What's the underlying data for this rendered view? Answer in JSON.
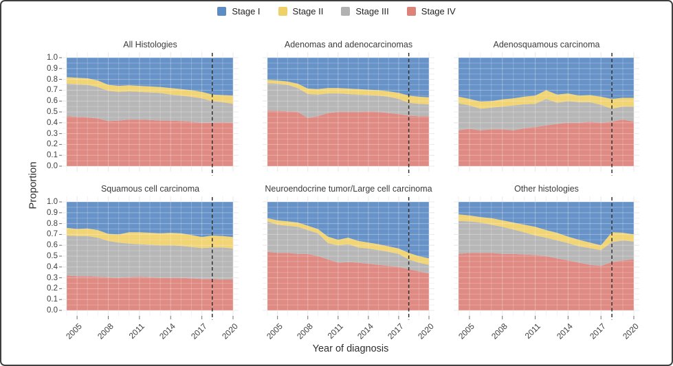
{
  "legend": {
    "items": [
      {
        "label": "Stage I",
        "color": "#5d8bc4"
      },
      {
        "label": "Stage II",
        "color": "#f0d169"
      },
      {
        "label": "Stage III",
        "color": "#b2b2b2"
      },
      {
        "label": "Stage IV",
        "color": "#dd8179"
      }
    ]
  },
  "chart_data": {
    "type": "area",
    "stacked": true,
    "xlabel": "Year of diagnosis",
    "ylabel": "Proportion",
    "x": [
      2004,
      2005,
      2006,
      2007,
      2008,
      2009,
      2010,
      2011,
      2012,
      2013,
      2014,
      2015,
      2016,
      2017,
      2018,
      2019,
      2020
    ],
    "x_tick_years": [
      2005,
      2008,
      2011,
      2014,
      2017,
      2020
    ],
    "y_tick_labels": [
      "1.0",
      "0.9",
      "0.8",
      "0.7",
      "0.6",
      "0.5",
      "0.4",
      "0.3",
      "0.2",
      "0.1",
      "0.0"
    ],
    "ylim": [
      0,
      1
    ],
    "grid": true,
    "legend_position": "top",
    "legend_entries": [
      "Stage I",
      "Stage II",
      "Stage III",
      "Stage IV"
    ],
    "stack_order_bottom_to_top": [
      "Stage IV",
      "Stage III",
      "Stage II",
      "Stage I"
    ],
    "colors": {
      "stage_i": "#5d8bc4",
      "stage_ii": "#f0d169",
      "stage_iii": "#b2b2b2",
      "stage_iv": "#dd8179"
    },
    "reference_line": {
      "x": 2018,
      "style": "dashed",
      "color": "#2f2f2f"
    },
    "panels": [
      {
        "title": "All Histologies",
        "cumulative_tops": {
          "stage_iv": [
            0.46,
            0.455,
            0.45,
            0.44,
            0.415,
            0.42,
            0.43,
            0.43,
            0.425,
            0.42,
            0.42,
            0.415,
            0.41,
            0.4,
            0.4,
            0.405,
            0.4
          ],
          "stage_iii": [
            0.76,
            0.755,
            0.75,
            0.73,
            0.695,
            0.685,
            0.69,
            0.685,
            0.68,
            0.675,
            0.66,
            0.65,
            0.64,
            0.625,
            0.6,
            0.59,
            0.575
          ],
          "stage_ii": [
            0.82,
            0.815,
            0.81,
            0.79,
            0.75,
            0.74,
            0.745,
            0.74,
            0.735,
            0.73,
            0.72,
            0.71,
            0.7,
            0.685,
            0.66,
            0.655,
            0.65
          ],
          "stage_i": [
            1,
            1,
            1,
            1,
            1,
            1,
            1,
            1,
            1,
            1,
            1,
            1,
            1,
            1,
            1,
            1,
            1
          ]
        }
      },
      {
        "title": "Adenomas and adenocarcinomas",
        "cumulative_tops": {
          "stage_iv": [
            0.51,
            0.51,
            0.505,
            0.5,
            0.445,
            0.46,
            0.49,
            0.5,
            0.5,
            0.5,
            0.505,
            0.5,
            0.49,
            0.48,
            0.465,
            0.46,
            0.46
          ],
          "stage_iii": [
            0.765,
            0.76,
            0.75,
            0.72,
            0.665,
            0.66,
            0.67,
            0.67,
            0.665,
            0.66,
            0.655,
            0.65,
            0.64,
            0.62,
            0.585,
            0.575,
            0.57
          ],
          "stage_ii": [
            0.795,
            0.79,
            0.78,
            0.76,
            0.715,
            0.71,
            0.72,
            0.72,
            0.715,
            0.71,
            0.705,
            0.7,
            0.69,
            0.675,
            0.65,
            0.64,
            0.635
          ],
          "stage_i": [
            1,
            1,
            1,
            1,
            1,
            1,
            1,
            1,
            1,
            1,
            1,
            1,
            1,
            1,
            1,
            1,
            1
          ]
        }
      },
      {
        "title": "Adenosquamous carcinoma",
        "cumulative_tops": {
          "stage_iv": [
            0.33,
            0.345,
            0.33,
            0.34,
            0.34,
            0.33,
            0.35,
            0.36,
            0.375,
            0.39,
            0.4,
            0.4,
            0.41,
            0.4,
            0.41,
            0.43,
            0.41
          ],
          "stage_iii": [
            0.58,
            0.56,
            0.53,
            0.54,
            0.55,
            0.56,
            0.57,
            0.575,
            0.62,
            0.585,
            0.6,
            0.59,
            0.59,
            0.565,
            0.53,
            0.55,
            0.55
          ],
          "stage_ii": [
            0.64,
            0.62,
            0.595,
            0.6,
            0.615,
            0.625,
            0.64,
            0.65,
            0.7,
            0.66,
            0.67,
            0.65,
            0.655,
            0.64,
            0.62,
            0.63,
            0.63
          ],
          "stage_i": [
            1,
            1,
            1,
            1,
            1,
            1,
            1,
            1,
            1,
            1,
            1,
            1,
            1,
            1,
            1,
            1,
            1
          ]
        }
      },
      {
        "title": "Squamous cell carcinoma",
        "cumulative_tops": {
          "stage_iv": [
            0.32,
            0.315,
            0.315,
            0.31,
            0.305,
            0.3,
            0.305,
            0.31,
            0.305,
            0.3,
            0.3,
            0.3,
            0.295,
            0.29,
            0.29,
            0.285,
            0.285
          ],
          "stage_iii": [
            0.69,
            0.685,
            0.685,
            0.67,
            0.64,
            0.625,
            0.615,
            0.61,
            0.605,
            0.6,
            0.6,
            0.595,
            0.585,
            0.575,
            0.58,
            0.58,
            0.57
          ],
          "stage_ii": [
            0.76,
            0.75,
            0.755,
            0.74,
            0.705,
            0.7,
            0.72,
            0.72,
            0.715,
            0.71,
            0.715,
            0.71,
            0.695,
            0.675,
            0.69,
            0.685,
            0.675
          ],
          "stage_i": [
            1,
            1,
            1,
            1,
            1,
            1,
            1,
            1,
            1,
            1,
            1,
            1,
            1,
            1,
            1,
            1,
            1
          ]
        }
      },
      {
        "title": "Neuroendocrine tumor/Large cell carcinoma",
        "cumulative_tops": {
          "stage_iv": [
            0.54,
            0.53,
            0.53,
            0.52,
            0.52,
            0.5,
            0.47,
            0.44,
            0.445,
            0.44,
            0.43,
            0.42,
            0.41,
            0.4,
            0.38,
            0.36,
            0.34
          ],
          "stage_iii": [
            0.82,
            0.79,
            0.78,
            0.77,
            0.74,
            0.71,
            0.62,
            0.6,
            0.61,
            0.58,
            0.57,
            0.555,
            0.54,
            0.52,
            0.47,
            0.44,
            0.42
          ],
          "stage_ii": [
            0.85,
            0.83,
            0.82,
            0.81,
            0.78,
            0.75,
            0.68,
            0.65,
            0.67,
            0.64,
            0.625,
            0.61,
            0.59,
            0.57,
            0.53,
            0.5,
            0.48
          ],
          "stage_i": [
            1,
            1,
            1,
            1,
            1,
            1,
            1,
            1,
            1,
            1,
            1,
            1,
            1,
            1,
            1,
            1,
            1
          ]
        }
      },
      {
        "title": "Other histologies",
        "cumulative_tops": {
          "stage_iv": [
            0.52,
            0.53,
            0.53,
            0.53,
            0.52,
            0.52,
            0.515,
            0.51,
            0.5,
            0.48,
            0.46,
            0.44,
            0.42,
            0.41,
            0.445,
            0.46,
            0.47
          ],
          "stage_iii": [
            0.825,
            0.82,
            0.81,
            0.79,
            0.77,
            0.745,
            0.72,
            0.69,
            0.67,
            0.645,
            0.62,
            0.59,
            0.575,
            0.555,
            0.63,
            0.645,
            0.635
          ],
          "stage_ii": [
            0.885,
            0.875,
            0.86,
            0.85,
            0.83,
            0.81,
            0.79,
            0.77,
            0.74,
            0.715,
            0.68,
            0.65,
            0.625,
            0.6,
            0.72,
            0.715,
            0.7
          ],
          "stage_i": [
            1,
            1,
            1,
            1,
            1,
            1,
            1,
            1,
            1,
            1,
            1,
            1,
            1,
            1,
            1,
            1,
            1
          ]
        }
      }
    ]
  }
}
